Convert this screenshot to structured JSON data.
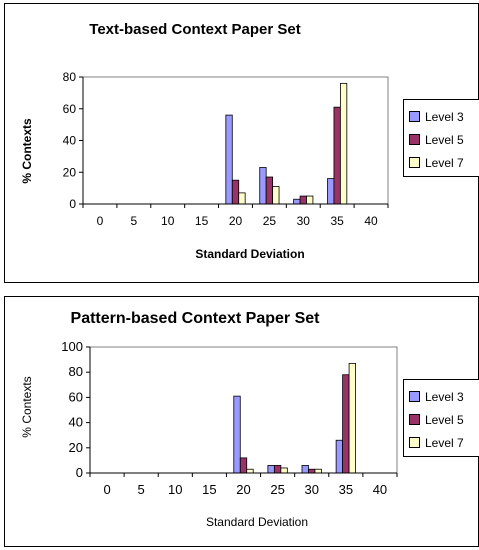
{
  "chart_data": [
    {
      "type": "bar",
      "title": "Text-based Context Paper Set",
      "xlabel": "Standard Deviation",
      "ylabel": "% Contexts",
      "x_ticks": [
        "0",
        "5",
        "10",
        "15",
        "20",
        "25",
        "30",
        "35",
        "40"
      ],
      "y_ticks": [
        "0",
        "20",
        "40",
        "60",
        "80"
      ],
      "ylim": [
        0,
        80
      ],
      "xlim": [
        -2.5,
        42.5
      ],
      "categories": [
        "20",
        "25",
        "30",
        "35"
      ],
      "series": [
        {
          "name": "Level 3",
          "color": "#9999ff",
          "values": [
            56,
            23,
            3,
            16
          ]
        },
        {
          "name": "Level 5",
          "color": "#993366",
          "values": [
            15,
            17,
            5,
            61
          ]
        },
        {
          "name": "Level 7",
          "color": "#ffffcc",
          "values": [
            7,
            11,
            5,
            76
          ]
        }
      ],
      "grid": false,
      "legend": "right"
    },
    {
      "type": "bar",
      "title": "Pattern-based Context Paper Set",
      "xlabel": "Standard Deviation",
      "ylabel": "% Contexts",
      "x_ticks": [
        "0",
        "5",
        "10",
        "15",
        "20",
        "25",
        "30",
        "35",
        "40"
      ],
      "y_ticks": [
        "0",
        "20",
        "40",
        "60",
        "80",
        "100"
      ],
      "ylim": [
        0,
        100
      ],
      "xlim": [
        -2.5,
        42.5
      ],
      "categories": [
        "20",
        "25",
        "30",
        "35"
      ],
      "series": [
        {
          "name": "Level 3",
          "color": "#9999ff",
          "values": [
            61,
            6,
            6,
            26
          ]
        },
        {
          "name": "Level 5",
          "color": "#993366",
          "values": [
            12,
            6,
            3,
            78
          ]
        },
        {
          "name": "Level 7",
          "color": "#ffffcc",
          "values": [
            3,
            4,
            3,
            87
          ]
        }
      ],
      "grid": false,
      "legend": "right"
    }
  ]
}
